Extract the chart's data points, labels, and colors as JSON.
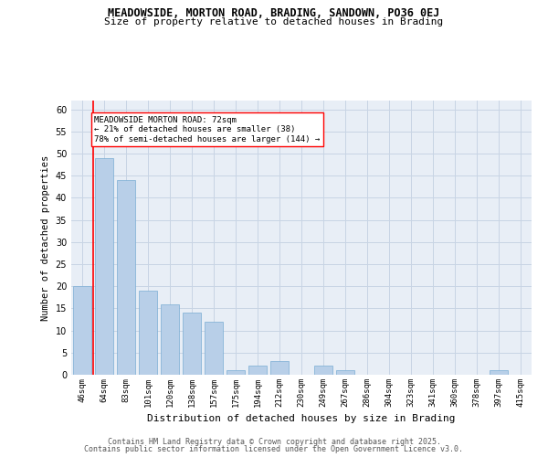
{
  "title1": "MEADOWSIDE, MORTON ROAD, BRADING, SANDOWN, PO36 0EJ",
  "title2": "Size of property relative to detached houses in Brading",
  "xlabel": "Distribution of detached houses by size in Brading",
  "ylabel": "Number of detached properties",
  "categories": [
    "46sqm",
    "64sqm",
    "83sqm",
    "101sqm",
    "120sqm",
    "138sqm",
    "157sqm",
    "175sqm",
    "194sqm",
    "212sqm",
    "230sqm",
    "249sqm",
    "267sqm",
    "286sqm",
    "304sqm",
    "323sqm",
    "341sqm",
    "360sqm",
    "378sqm",
    "397sqm",
    "415sqm"
  ],
  "values": [
    20,
    49,
    44,
    19,
    16,
    14,
    12,
    1,
    2,
    3,
    0,
    2,
    1,
    0,
    0,
    0,
    0,
    0,
    0,
    1,
    0
  ],
  "bar_color": "#b8cfe8",
  "bar_edge_color": "#7aadd4",
  "grid_color": "#c8d4e4",
  "background_color": "#e8eef6",
  "annotation_line1": "MEADOWSIDE MORTON ROAD: 72sqm",
  "annotation_line2": "← 21% of detached houses are smaller (38)",
  "annotation_line3": "78% of semi-detached houses are larger (144) →",
  "annotation_box_color": "white",
  "annotation_box_edge": "red",
  "redline_x": 0.5,
  "ylim": [
    0,
    62
  ],
  "yticks": [
    0,
    5,
    10,
    15,
    20,
    25,
    30,
    35,
    40,
    45,
    50,
    55,
    60
  ],
  "footer1": "Contains HM Land Registry data © Crown copyright and database right 2025.",
  "footer2": "Contains public sector information licensed under the Open Government Licence v3.0."
}
